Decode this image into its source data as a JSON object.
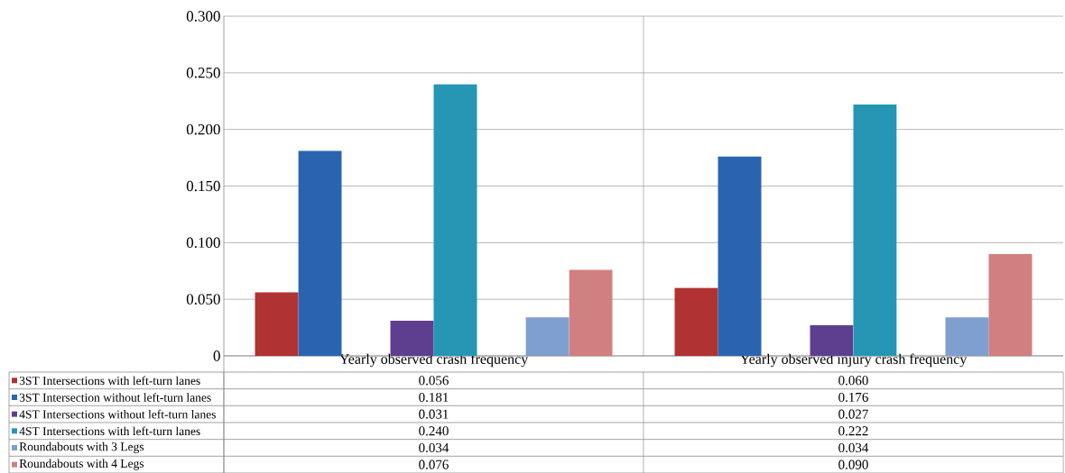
{
  "chart_data": {
    "type": "bar",
    "categories": [
      "Yearly observed crash frequency",
      "Yearly observed injury crash frequency"
    ],
    "series": [
      {
        "name": "3ST Intersections with left-turn lanes",
        "color": "#b03232",
        "values": [
          0.056,
          0.06
        ],
        "value_labels": [
          "0.056",
          "0.060"
        ]
      },
      {
        "name": "3ST Intersection without left-turn lanes",
        "color": "#2a64b0",
        "values": [
          0.181,
          0.176
        ],
        "value_labels": [
          "0.181",
          "0.176"
        ]
      },
      {
        "name": "4ST Intersections without left-turn lanes",
        "color": "#5e3f8f",
        "values": [
          0.031,
          0.027
        ],
        "value_labels": [
          "0.031",
          "0.027"
        ]
      },
      {
        "name": "4ST Intersections with left-turn lanes",
        "color": "#2596b4",
        "values": [
          0.24,
          0.222
        ],
        "value_labels": [
          "0.240",
          "0.222"
        ]
      },
      {
        "name": "Roundabouts with 3 Legs",
        "color": "#7f9fd0",
        "values": [
          0.034,
          0.034
        ],
        "value_labels": [
          "0.034",
          "0.034"
        ]
      },
      {
        "name": "Roundabouts with 4 Legs",
        "color": "#d08080",
        "values": [
          0.076,
          0.09
        ],
        "value_labels": [
          "0.076",
          "0.090"
        ]
      }
    ],
    "ylim": [
      0,
      0.3
    ],
    "yticks": [
      {
        "value": 0,
        "label": "0"
      },
      {
        "value": 0.05,
        "label": "0.050"
      },
      {
        "value": 0.1,
        "label": "0.100"
      },
      {
        "value": 0.15,
        "label": "0.150"
      },
      {
        "value": 0.2,
        "label": "0.200"
      },
      {
        "value": 0.25,
        "label": "0.250"
      },
      {
        "value": 0.3,
        "label": "0.300"
      }
    ],
    "grid": true,
    "legend": "bottom"
  }
}
